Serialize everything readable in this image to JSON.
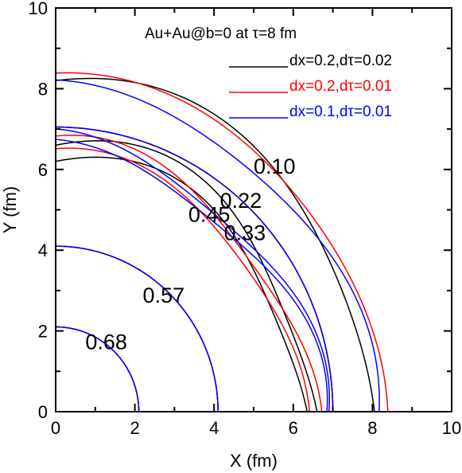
{
  "chart_data": {
    "type": "line",
    "title": "Au+Au@b=0 at τ=8 fm",
    "xlabel": "X (fm)",
    "ylabel": "Y (fm)",
    "xlim": [
      0,
      10
    ],
    "ylim": [
      0,
      10
    ],
    "xticks": [
      "0",
      "2",
      "4",
      "6",
      "8",
      "10"
    ],
    "yticks": [
      "0",
      "2",
      "4",
      "6",
      "8",
      "10"
    ],
    "grid": false,
    "legend_position": "top-right",
    "series": [
      {
        "name": "dx=0.2,dτ=0.02",
        "color": "#000000",
        "contours": [
          {
            "level": 0.68,
            "r0": 2.1,
            "r90": 2.1,
            "bump": 0.0
          },
          {
            "level": 0.57,
            "r0": 4.1,
            "r90": 4.1,
            "bump": 0.0
          },
          {
            "level": 0.45,
            "r0": 6.35,
            "r90": 6.2,
            "bump": 0.05
          },
          {
            "level": 0.33,
            "r0": 6.6,
            "r90": 6.6,
            "bump": 0.05
          },
          {
            "level": 0.22,
            "r0": 7.0,
            "r90": 7.05,
            "bump": 0.0
          },
          {
            "level": 0.1,
            "r0": 8.05,
            "r90": 8.2,
            "bump": 0.03
          }
        ]
      },
      {
        "name": "dx=0.2,dτ=0.01",
        "color": "#ff0000",
        "contours": [
          {
            "level": 0.68,
            "r0": 2.1,
            "r90": 2.1,
            "bump": 0.0
          },
          {
            "level": 0.57,
            "r0": 4.1,
            "r90": 4.1,
            "bump": 0.0
          },
          {
            "level": 0.45,
            "r0": 6.2,
            "r90": 6.3,
            "bump": 0.04
          },
          {
            "level": 0.33,
            "r0": 6.45,
            "r90": 6.55,
            "bump": 0.05
          },
          {
            "level": 0.22,
            "r0": 7.0,
            "r90": 7.05,
            "bump": 0.0
          },
          {
            "level": 0.1,
            "r0": 8.25,
            "r90": 8.25,
            "bump": 0.02
          }
        ]
      },
      {
        "name": "dx=0.1,dτ=0.01",
        "color": "#0000ff",
        "contours": [
          {
            "level": 0.68,
            "r0": 2.1,
            "r90": 2.1,
            "bump": 0.0
          },
          {
            "level": 0.57,
            "r0": 4.1,
            "r90": 4.1,
            "bump": 0.0
          },
          {
            "level": 0.45,
            "r0": 6.55,
            "r90": 6.45,
            "bump": 0.05
          },
          {
            "level": 0.33,
            "r0": 6.6,
            "r90": 6.7,
            "bump": 0.05
          },
          {
            "level": 0.22,
            "r0": 7.0,
            "r90": 7.05,
            "bump": 0.0
          },
          {
            "level": 0.1,
            "r0": 7.95,
            "r90": 8.0,
            "bump": 0.03
          }
        ]
      }
    ],
    "annotations": [
      {
        "text": "0.10",
        "x": 5.0,
        "y": 5.9
      },
      {
        "text": "0.22",
        "x": 4.15,
        "y": 5.05
      },
      {
        "text": "0.45",
        "x": 3.35,
        "y": 4.7
      },
      {
        "text": "0.33",
        "x": 4.25,
        "y": 4.25
      },
      {
        "text": "0.57",
        "x": 2.2,
        "y": 2.7
      },
      {
        "text": "0.68",
        "x": 0.75,
        "y": 1.55
      }
    ]
  }
}
